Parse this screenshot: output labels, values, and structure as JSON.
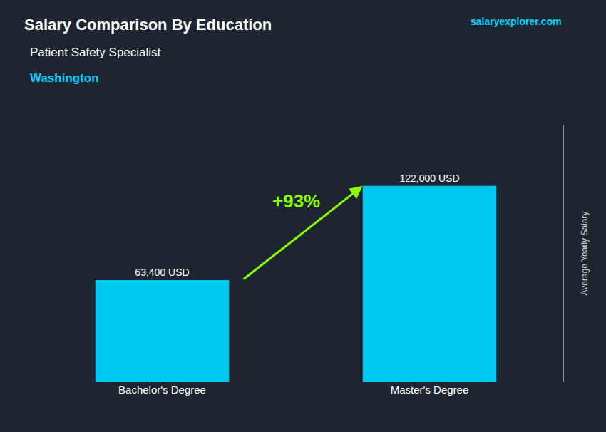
{
  "chart_data": {
    "type": "bar",
    "title": "Salary Comparison By Education",
    "subtitle": [
      "Patient Safety Specialist",
      "Washington"
    ],
    "categories": [
      "Bachelor's Degree",
      "Master's Degree"
    ],
    "values": [
      63400,
      122000
    ],
    "value_labels": [
      "63,400 USD",
      "122,000 USD"
    ],
    "data_labels": true,
    "color": "#00C8F0",
    "ylabel": "Average Yearly Salary",
    "ylim": [
      0,
      160000
    ],
    "yticks": [],
    "tick_labels": "x",
    "grid": false,
    "annotations": [
      "+93%",
      "salaryexplorer.com"
    ]
  }
}
